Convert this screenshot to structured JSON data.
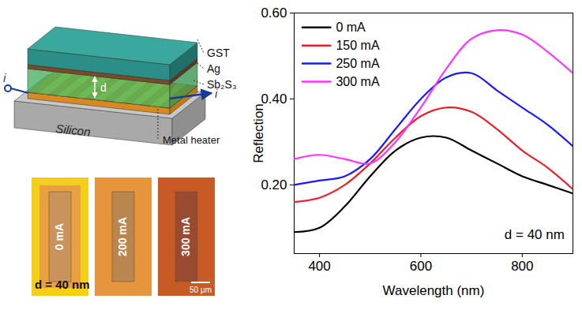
{
  "chart_data": {
    "type": "line",
    "xlabel": "Wavelength (nm)",
    "ylabel": "Reflection",
    "x": [
      350,
      400,
      450,
      500,
      550,
      600,
      650,
      700,
      750,
      800,
      850,
      900
    ],
    "series": [
      {
        "name": "0 mA",
        "color": "#000000",
        "values": [
          0.09,
          0.1,
          0.15,
          0.22,
          0.28,
          0.31,
          0.31,
          0.28,
          0.25,
          0.22,
          0.2,
          0.18
        ]
      },
      {
        "name": "150 mA",
        "color": "#e8202a",
        "values": [
          0.16,
          0.17,
          0.2,
          0.25,
          0.31,
          0.36,
          0.38,
          0.37,
          0.33,
          0.28,
          0.24,
          0.19
        ]
      },
      {
        "name": "250 mA",
        "color": "#1a1aff",
        "values": [
          0.2,
          0.21,
          0.22,
          0.26,
          0.33,
          0.4,
          0.45,
          0.46,
          0.42,
          0.38,
          0.34,
          0.29
        ]
      },
      {
        "name": "300 mA",
        "color": "#ff33ff",
        "values": [
          0.26,
          0.27,
          0.26,
          0.25,
          0.3,
          0.38,
          0.47,
          0.54,
          0.56,
          0.55,
          0.51,
          0.46
        ]
      }
    ],
    "xlim": [
      350,
      900
    ],
    "xticks": [
      400,
      600,
      800
    ],
    "ylim": [
      0.04,
      0.6
    ],
    "yticks": [
      0.2,
      0.4,
      0.6
    ],
    "legend": "top-left",
    "annotation": "d = 40 nm"
  },
  "diagram": {
    "layers": [
      "GST",
      "Ag",
      "Sb₂S₃"
    ],
    "substrate": "Silicon",
    "heater": "Metal heater",
    "thickness": "d",
    "current_labels": [
      "i",
      "i"
    ]
  },
  "micrographs": {
    "currents": [
      "0 mA",
      "200 mA",
      "300 mA"
    ],
    "caption": "d = 40 nm",
    "scale_bar": "50 μm"
  }
}
